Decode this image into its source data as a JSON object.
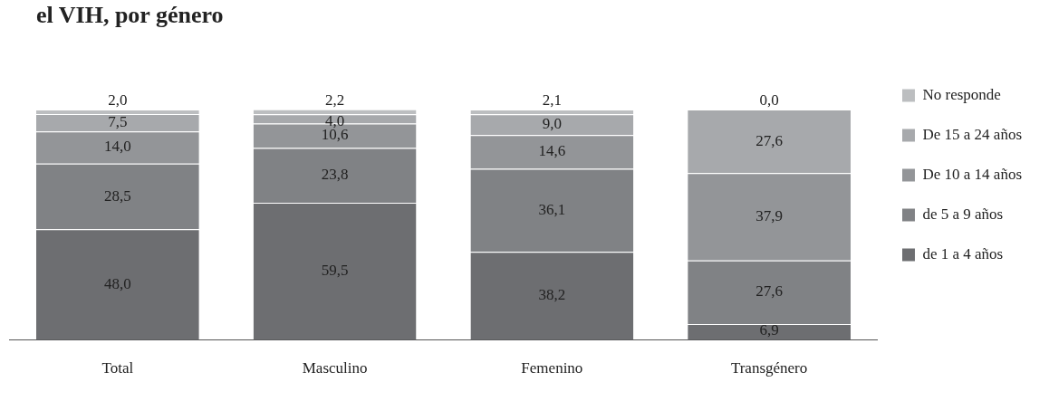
{
  "chart_data": {
    "type": "bar",
    "stacked": true,
    "title": "el VIH, por género",
    "categories": [
      "Total",
      "Masculino",
      "Femenino",
      "Transgénero"
    ],
    "series": [
      {
        "name": "de 1 a 4 años",
        "color": "#6d6e71",
        "values": [
          48.0,
          59.5,
          38.2,
          6.9
        ],
        "value_labels": [
          "48,0",
          "59,5",
          "38,2",
          "6,9"
        ]
      },
      {
        "name": "de 5 a 9 años",
        "color": "#808285",
        "values": [
          28.5,
          23.8,
          36.1,
          27.6
        ],
        "value_labels": [
          "28,5",
          "23,8",
          "36,1",
          "27,6"
        ]
      },
      {
        "name": "De 10 a 14 años",
        "color": "#939598",
        "values": [
          14.0,
          10.6,
          14.6,
          37.9
        ],
        "value_labels": [
          "14,0",
          "10,6",
          "14,6",
          "37,9"
        ]
      },
      {
        "name": "De 15 a 24 años",
        "color": "#a7a9ac",
        "values": [
          7.5,
          4.0,
          9.0,
          27.6
        ],
        "value_labels": [
          "7,5",
          "4,0",
          "9,0",
          "27,6"
        ]
      },
      {
        "name": "No responde",
        "color": "#bcbec0",
        "values": [
          2.0,
          2.2,
          2.1,
          0.0
        ],
        "value_labels": [
          "2,0",
          "2,2",
          "2,1",
          "0,0"
        ]
      }
    ],
    "legend": "right",
    "grid": false,
    "tick_labels": "x"
  }
}
